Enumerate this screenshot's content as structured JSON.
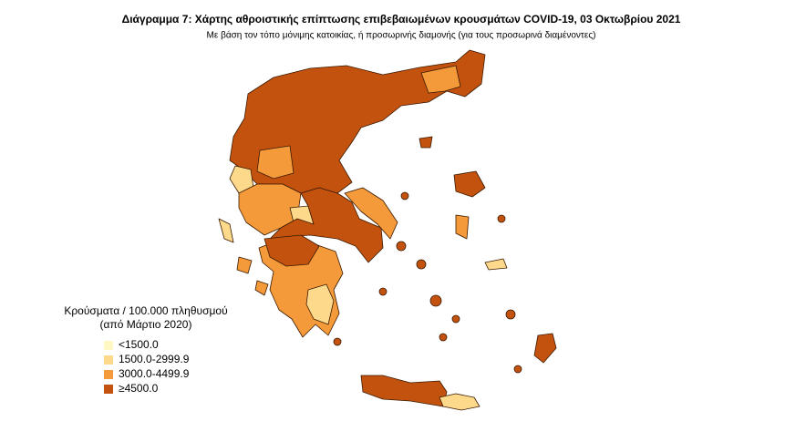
{
  "title": "Διάγραμμα 7: Χάρτης αθροιστικής επίπτωσης επιβεβαιωμένων κρουσμάτων COVID-19, 03 Οκτωβρίου 2021",
  "subtitle": "Με βάση τον τόπο μόνιμης κατοικίας, ή προσωρινής διαμονής (για τους προσωρινά διαμένοντες)",
  "legend": {
    "title": [
      "Κρούσματα / 100.000 πληθυσμού",
      "(από Μάρτιο 2020)"
    ],
    "items": [
      {
        "label": "<1500.0",
        "color": "#fff7c4"
      },
      {
        "label": "1500.0-2999.9",
        "color": "#fdd98c"
      },
      {
        "label": "3000.0-4499.9",
        "color": "#f59a3a"
      },
      {
        "label": "≥4500.0",
        "color": "#c4520f"
      }
    ]
  }
}
